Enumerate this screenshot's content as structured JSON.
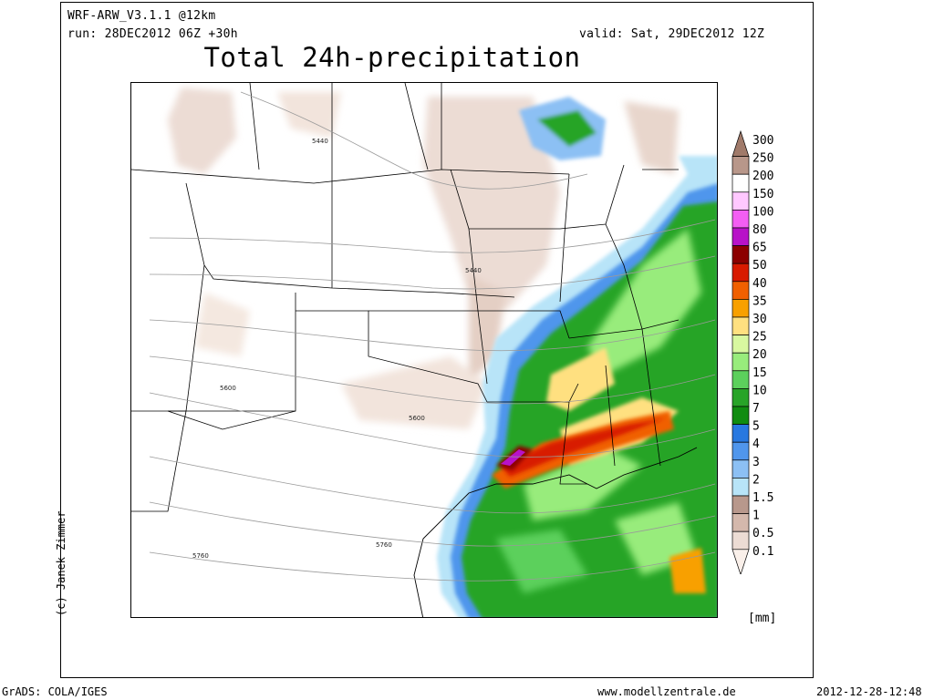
{
  "header": {
    "model": "WRF-ARW_V3.1.1 @12km",
    "run": "run: 28DEC2012 06Z +30h",
    "valid": "valid: Sat, 29DEC2012 12Z",
    "title": "Total 24h-precipitation"
  },
  "map": {
    "contour_labels": [
      "5440",
      "5440",
      "5600",
      "5600",
      "5760",
      "5760"
    ]
  },
  "credit": "(c) Janek Zimmer",
  "legend": {
    "unit": "[mm]",
    "entries": [
      {
        "label": "300",
        "color": "#a07a6a"
      },
      {
        "label": "250",
        "color": "#b8978a"
      },
      {
        "label": "200",
        "color": "#ffffff"
      },
      {
        "label": "150",
        "color": "#ffc8ff"
      },
      {
        "label": "100",
        "color": "#f35ef3"
      },
      {
        "label": "80",
        "color": "#b812c8"
      },
      {
        "label": "65",
        "color": "#8c0000"
      },
      {
        "label": "50",
        "color": "#d81a00"
      },
      {
        "label": "40",
        "color": "#f06000"
      },
      {
        "label": "35",
        "color": "#f8a000"
      },
      {
        "label": "30",
        "color": "#ffe080"
      },
      {
        "label": "25",
        "color": "#d8f8a0"
      },
      {
        "label": "20",
        "color": "#98ec7c"
      },
      {
        "label": "15",
        "color": "#5cd05c"
      },
      {
        "label": "10",
        "color": "#28a428"
      },
      {
        "label": "7",
        "color": "#108c10"
      },
      {
        "label": "5",
        "color": "#2878e0"
      },
      {
        "label": "4",
        "color": "#5096ec"
      },
      {
        "label": "3",
        "color": "#8cc0f4"
      },
      {
        "label": "2",
        "color": "#b8e4f8"
      },
      {
        "label": "1.5",
        "color": "#b8988c"
      },
      {
        "label": "1",
        "color": "#d4b8ac"
      },
      {
        "label": "0.5",
        "color": "#ecdcd4"
      },
      {
        "label": "0.1",
        "color": "#faf0ea"
      }
    ]
  },
  "footer": {
    "left": "GrADS: COLA/IGES",
    "center": "www.modellzentrale.de",
    "right": "2012-12-28-12:48"
  }
}
